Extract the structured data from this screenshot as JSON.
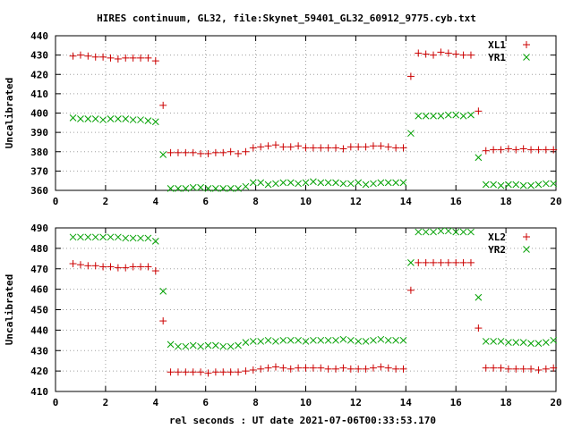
{
  "title": "HIRES continuum, GL32, file:Skynet_59401_GL32_60912_9775.cyb.txt",
  "xlabel": "rel seconds : UT date 2021-07-06T00:33:53.170",
  "colors": {
    "L": "#cc0000",
    "R": "#00a000",
    "axis": "#000000",
    "grid": "#a0a0a0"
  },
  "chart_data": [
    {
      "type": "scatter",
      "ylabel": "Uncalibrated",
      "xlim": [
        0,
        20
      ],
      "ylim": [
        360,
        440
      ],
      "xticks": [
        0,
        2,
        4,
        6,
        8,
        10,
        12,
        14,
        16,
        18,
        20
      ],
      "yticks": [
        360,
        370,
        380,
        390,
        400,
        410,
        420,
        430,
        440
      ],
      "grid": true,
      "legend": "top-right",
      "series": [
        {
          "name": "XL1",
          "marker": "plus",
          "x": [
            0.7,
            1.0,
            1.3,
            1.6,
            1.9,
            2.2,
            2.5,
            2.8,
            3.1,
            3.4,
            3.7,
            4.0,
            4.3,
            4.6,
            4.9,
            5.2,
            5.5,
            5.8,
            6.1,
            6.4,
            6.7,
            7.0,
            7.3,
            7.6,
            7.9,
            8.2,
            8.5,
            8.8,
            9.1,
            9.4,
            9.7,
            10.0,
            10.3,
            10.6,
            10.9,
            11.2,
            11.5,
            11.8,
            12.1,
            12.4,
            12.7,
            13.0,
            13.3,
            13.6,
            13.9,
            14.2,
            14.5,
            14.8,
            15.1,
            15.4,
            15.7,
            16.0,
            16.3,
            16.6,
            16.9,
            17.2,
            17.5,
            17.8,
            18.1,
            18.4,
            18.7,
            19.0,
            19.3,
            19.6,
            19.9
          ],
          "y": [
            429.5,
            430,
            429.5,
            429,
            429,
            428.5,
            428,
            428.5,
            428.5,
            428.5,
            428.5,
            427,
            404,
            379.5,
            379.5,
            379.5,
            379.5,
            379,
            379,
            379.5,
            379.5,
            380,
            379,
            380,
            382,
            382.5,
            383,
            383.5,
            382.5,
            382.5,
            383,
            382,
            382,
            382,
            382,
            382,
            381.5,
            382.5,
            382.5,
            382.5,
            383,
            383,
            382.5,
            382,
            382,
            419,
            431,
            430.5,
            430,
            431.5,
            431,
            430.5,
            430,
            430,
            401,
            380.5,
            381,
            381,
            381.5,
            381,
            381.5,
            381,
            381,
            381,
            381
          ]
        },
        {
          "name": "YR1",
          "marker": "cross",
          "x": [
            0.7,
            1.0,
            1.3,
            1.6,
            1.9,
            2.2,
            2.5,
            2.8,
            3.1,
            3.4,
            3.7,
            4.0,
            4.3,
            4.6,
            4.9,
            5.2,
            5.5,
            5.8,
            6.1,
            6.4,
            6.7,
            7.0,
            7.3,
            7.6,
            7.9,
            8.2,
            8.5,
            8.8,
            9.1,
            9.4,
            9.7,
            10.0,
            10.3,
            10.6,
            10.9,
            11.2,
            11.5,
            11.8,
            12.1,
            12.4,
            12.7,
            13.0,
            13.3,
            13.6,
            13.9,
            14.2,
            14.5,
            14.8,
            15.1,
            15.4,
            15.7,
            16.0,
            16.3,
            16.6,
            16.9,
            17.2,
            17.5,
            17.8,
            18.1,
            18.4,
            18.7,
            19.0,
            19.3,
            19.6,
            19.9
          ],
          "y": [
            397.5,
            397,
            397,
            397,
            396.5,
            397,
            397,
            397,
            396.5,
            396.5,
            396,
            395.5,
            378.5,
            361,
            361,
            361,
            361.5,
            361.5,
            361,
            361,
            361,
            361,
            361,
            362,
            364,
            364,
            363,
            363.5,
            364,
            364,
            363.5,
            364,
            364.5,
            364,
            364,
            364,
            363.5,
            363.5,
            364,
            363,
            363.5,
            364,
            364,
            364,
            364,
            389.5,
            398.5,
            398.5,
            398.5,
            398.5,
            399,
            399,
            398.5,
            399,
            377,
            363,
            363,
            362.5,
            363,
            363,
            362.5,
            362.5,
            363,
            363.5,
            363.5
          ]
        }
      ]
    },
    {
      "type": "scatter",
      "ylabel": "Uncalibrated",
      "xlim": [
        0,
        20
      ],
      "ylim": [
        410,
        490
      ],
      "xticks": [
        0,
        2,
        4,
        6,
        8,
        10,
        12,
        14,
        16,
        18,
        20
      ],
      "yticks": [
        410,
        420,
        430,
        440,
        450,
        460,
        470,
        480,
        490
      ],
      "grid": true,
      "legend": "top-right",
      "series": [
        {
          "name": "XL2",
          "marker": "plus",
          "x": [
            0.7,
            1.0,
            1.3,
            1.6,
            1.9,
            2.2,
            2.5,
            2.8,
            3.1,
            3.4,
            3.7,
            4.0,
            4.3,
            4.6,
            4.9,
            5.2,
            5.5,
            5.8,
            6.1,
            6.4,
            6.7,
            7.0,
            7.3,
            7.6,
            7.9,
            8.2,
            8.5,
            8.8,
            9.1,
            9.4,
            9.7,
            10.0,
            10.3,
            10.6,
            10.9,
            11.2,
            11.5,
            11.8,
            12.1,
            12.4,
            12.7,
            13.0,
            13.3,
            13.6,
            13.9,
            14.2,
            14.5,
            14.8,
            15.1,
            15.4,
            15.7,
            16.0,
            16.3,
            16.6,
            16.9,
            17.2,
            17.5,
            17.8,
            18.1,
            18.4,
            18.7,
            19.0,
            19.3,
            19.6,
            19.9
          ],
          "y": [
            472.5,
            472,
            471.5,
            471.5,
            471,
            471,
            470.5,
            470.5,
            471,
            471,
            471,
            469,
            444.5,
            419.5,
            419.5,
            419.5,
            419.5,
            419.5,
            419,
            419.5,
            419.5,
            419.5,
            419.5,
            420,
            420.5,
            421,
            421.5,
            422,
            421.5,
            421,
            421.5,
            421.5,
            421.5,
            421.5,
            421,
            421,
            421.5,
            421,
            421,
            421,
            421.5,
            422,
            421.5,
            421,
            421,
            459.5,
            473,
            473,
            473,
            473,
            473,
            473,
            473,
            473,
            441,
            421.5,
            421.5,
            421.5,
            421,
            421,
            421,
            421,
            420.5,
            421,
            421.5
          ]
        },
        {
          "name": "YR2",
          "marker": "cross",
          "x": [
            0.7,
            1.0,
            1.3,
            1.6,
            1.9,
            2.2,
            2.5,
            2.8,
            3.1,
            3.4,
            3.7,
            4.0,
            4.3,
            4.6,
            4.9,
            5.2,
            5.5,
            5.8,
            6.1,
            6.4,
            6.7,
            7.0,
            7.3,
            7.6,
            7.9,
            8.2,
            8.5,
            8.8,
            9.1,
            9.4,
            9.7,
            10.0,
            10.3,
            10.6,
            10.9,
            11.2,
            11.5,
            11.8,
            12.1,
            12.4,
            12.7,
            13.0,
            13.3,
            13.6,
            13.9,
            14.2,
            14.5,
            14.8,
            15.1,
            15.4,
            15.7,
            16.0,
            16.3,
            16.6,
            16.9,
            17.2,
            17.5,
            17.8,
            18.1,
            18.4,
            18.7,
            19.0,
            19.3,
            19.6,
            19.9
          ],
          "y": [
            485.5,
            485.5,
            485.5,
            485.5,
            485.5,
            485.5,
            485.5,
            485,
            485,
            485,
            485,
            483.5,
            459,
            433,
            432,
            432,
            432.5,
            432,
            432.5,
            432.5,
            432,
            432,
            432.5,
            434,
            434.5,
            434.5,
            435,
            434.5,
            435,
            435,
            435,
            434.5,
            435,
            435,
            435,
            435,
            435.5,
            435,
            434.5,
            434.5,
            435,
            435.5,
            435,
            435,
            435,
            473,
            488,
            488,
            488,
            488.5,
            488.5,
            488,
            488,
            488,
            456,
            434.5,
            434.5,
            434.5,
            434,
            434,
            434,
            433.5,
            433.5,
            434,
            435
          ]
        }
      ]
    }
  ]
}
